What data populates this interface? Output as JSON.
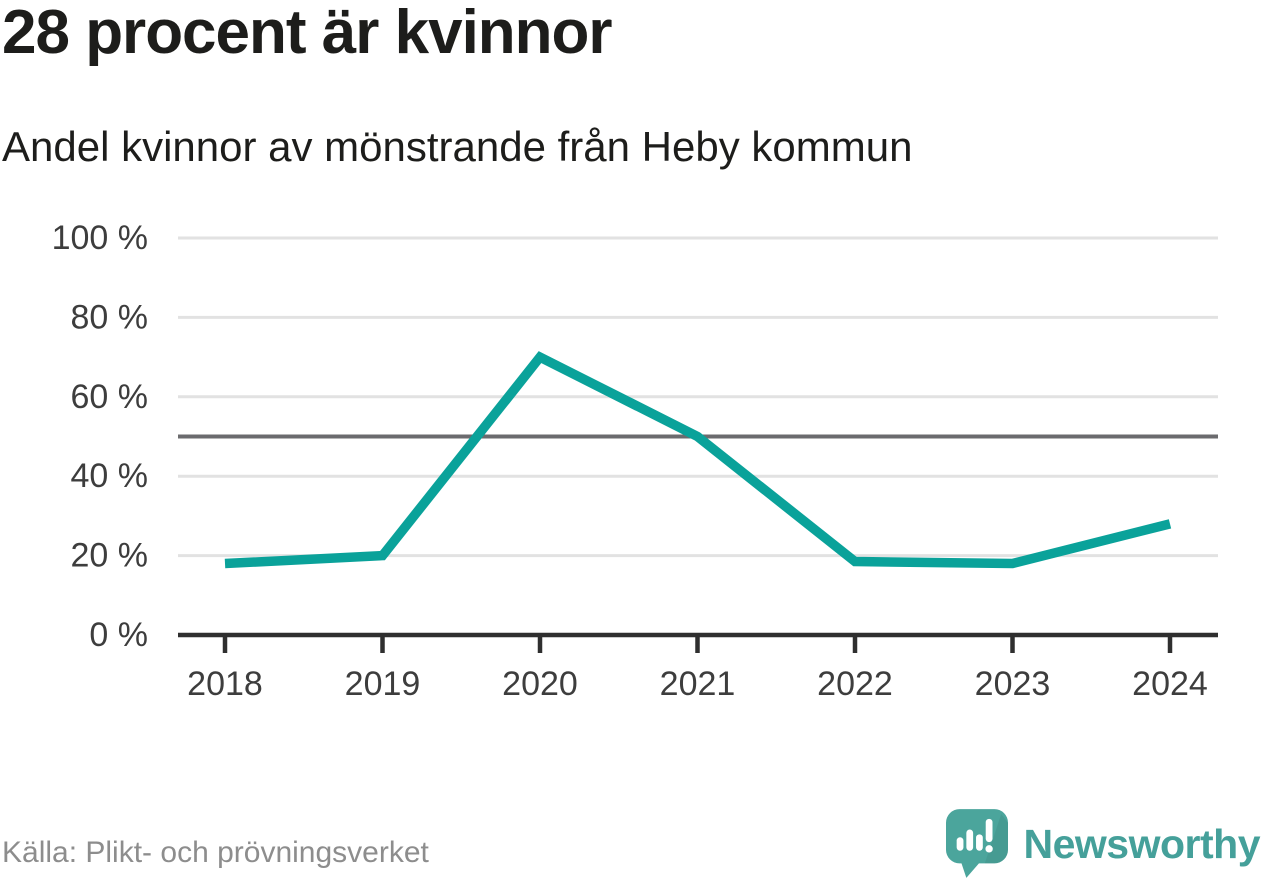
{
  "header": {
    "title": "28 procent är kvinnor",
    "subtitle": "Andel kvinnor av mönstrande från Heby kommun"
  },
  "chart_data": {
    "type": "line",
    "title": "28 procent är kvinnor",
    "subtitle": "Andel kvinnor av mönstrande från Heby kommun",
    "x": [
      2018,
      2019,
      2020,
      2021,
      2022,
      2023,
      2024
    ],
    "x_tick_labels": [
      "2018",
      "2019",
      "2020",
      "2021",
      "2022",
      "2023",
      "2024"
    ],
    "series": [
      {
        "name": "Andel kvinnor av mönstrande",
        "values": [
          18,
          20,
          70,
          50,
          18.5,
          18,
          28
        ]
      }
    ],
    "unit": "%",
    "ylim": [
      0,
      100
    ],
    "yticks": [
      0,
      20,
      40,
      60,
      80,
      100
    ],
    "y_tick_labels": [
      "0 %",
      "20 %",
      "40 %",
      "60 %",
      "80 %",
      "100 %"
    ],
    "reference_line": 50,
    "grid": true,
    "legend": "none"
  },
  "footer": {
    "source": "Källa: Plikt- och prövningsverket",
    "logo_text": "Newsworthy"
  },
  "colors": {
    "accent": "#0aa29a",
    "grid": "#e2e2e2",
    "reference": "#6b6b6e",
    "axis": "#2f2f2f",
    "tick_label": "#3d3d3d",
    "text": "#1d1d1b",
    "muted": "#8d8d8d",
    "logo": "#45a09a",
    "logo_bubble": "#4ba59c"
  }
}
